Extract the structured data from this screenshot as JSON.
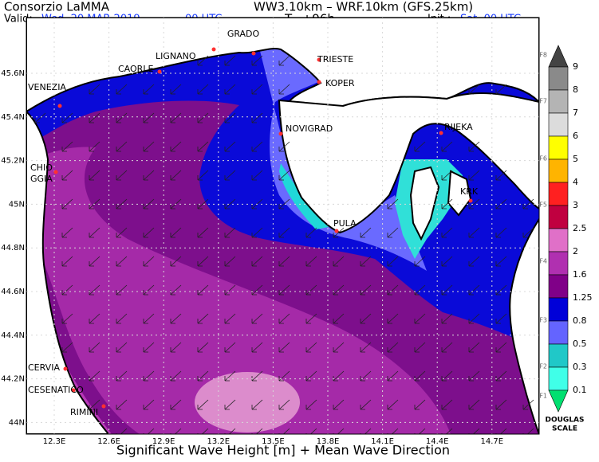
{
  "header": {
    "org": "Consorzio LaMMA",
    "model": "WW3.10km – WRF.10km (GFS.25km)",
    "valid_label": "Valid:",
    "valid_date": "Wed, 20 MAR 2019",
    "valid_time": "00 UTC",
    "lead_time": "T=+96h",
    "init_label": "Init.:",
    "init_value": "Sat, 00 UTC"
  },
  "map": {
    "cities": [
      {
        "label": "GRADO"
      },
      {
        "label": "TRIESTE"
      },
      {
        "label": "LIGNANO"
      },
      {
        "label": "CAORLE"
      },
      {
        "label": "KOPER"
      },
      {
        "label": "VENEZIA"
      },
      {
        "label": "NOVIGRAD"
      },
      {
        "label": "RIJEKA"
      },
      {
        "label_lines": [
          "CHIO",
          "GGIA"
        ]
      },
      {
        "label": "KRK"
      },
      {
        "label": "PULA"
      },
      {
        "label": "CERVIA"
      },
      {
        "label": "CESENATICO"
      },
      {
        "label": "RIMINI"
      }
    ],
    "lon_ticks": [
      "12.3E",
      "12.6E",
      "12.9E",
      "13.2E",
      "13.5E",
      "13.8E",
      "14.1E",
      "14.4E",
      "14.7E"
    ],
    "lat_ticks": [
      "45.6N",
      "45.4N",
      "45.2N",
      "45N",
      "44.8N",
      "44.6N",
      "44.4N",
      "44.2N",
      "44N"
    ]
  },
  "legend": {
    "levels": [
      "9",
      "8",
      "7",
      "6",
      "5",
      "4",
      "3",
      "2.5",
      "2",
      "1.6",
      "1.25",
      "0.8",
      "0.5",
      "0.3",
      "0.1"
    ],
    "colors": [
      "#444444",
      "#8a8a8a",
      "#b4b4b4",
      "#dcdcdc",
      "#ffff00",
      "#ffb400",
      "#ff2020",
      "#c00040",
      "#e070c8",
      "#b030b0",
      "#800088",
      "#0000d8",
      "#6464ff",
      "#20c8c8",
      "#40ffe8",
      "#00e070"
    ],
    "douglas": [
      "F8",
      "F7",
      "F6",
      "F5",
      "F4",
      "F3",
      "F2",
      "F1"
    ],
    "scale_title": [
      "DOUGLAS",
      "SCALE"
    ]
  },
  "footer": "Significant Wave Height [m] + Mean Wave Direction"
}
